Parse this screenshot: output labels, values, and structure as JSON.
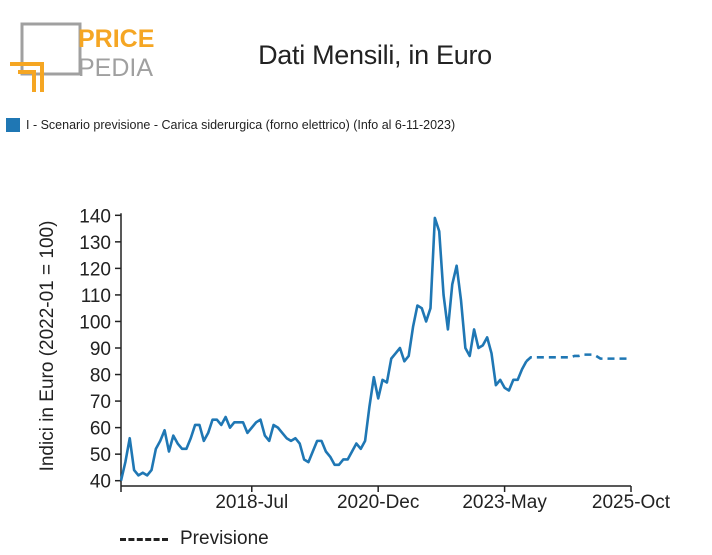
{
  "logo": {
    "line1": "PRICE",
    "line2": "PEDIA",
    "colors": {
      "orange": "#f5a623",
      "gray": "#a0a0a0"
    }
  },
  "colors": {
    "series": "#1f77b4",
    "axis": "#222222"
  },
  "chart_data": {
    "type": "line",
    "title": "Dati Mensili, in Euro",
    "ylabel": "Indici in Euro (2022-01 = 100)",
    "xlabel": "",
    "ylim": [
      38,
      142
    ],
    "yticks": [
      40,
      50,
      60,
      70,
      80,
      90,
      100,
      110,
      120,
      130,
      140
    ],
    "xlim": [
      "2016-01",
      "2025-10"
    ],
    "xticks": [
      {
        "x": "2016-01",
        "label": ""
      },
      {
        "x": "2018-07",
        "label": "2018-Jul"
      },
      {
        "x": "2020-12",
        "label": "2020-Dec"
      },
      {
        "x": "2023-05",
        "label": "2023-May"
      },
      {
        "x": "2025-10",
        "label": "2025-Oct"
      }
    ],
    "legend": "top-left",
    "grid": false,
    "series": [
      {
        "name": "I - Scenario previsione - Carica siderurgica (forno elettrico) (Info al 6-11-2023)",
        "color": "#1f77b4",
        "style": "solid",
        "x": [
          "2016-01",
          "2016-02",
          "2016-03",
          "2016-04",
          "2016-05",
          "2016-06",
          "2016-07",
          "2016-08",
          "2016-09",
          "2016-10",
          "2016-11",
          "2016-12",
          "2017-01",
          "2017-02",
          "2017-03",
          "2017-04",
          "2017-05",
          "2017-06",
          "2017-07",
          "2017-08",
          "2017-09",
          "2017-10",
          "2017-11",
          "2017-12",
          "2018-01",
          "2018-02",
          "2018-03",
          "2018-04",
          "2018-05",
          "2018-06",
          "2018-07",
          "2018-08",
          "2018-09",
          "2018-10",
          "2018-11",
          "2018-12",
          "2019-01",
          "2019-02",
          "2019-03",
          "2019-04",
          "2019-05",
          "2019-06",
          "2019-07",
          "2019-08",
          "2019-09",
          "2019-10",
          "2019-11",
          "2019-12",
          "2020-01",
          "2020-02",
          "2020-03",
          "2020-04",
          "2020-05",
          "2020-06",
          "2020-07",
          "2020-08",
          "2020-09",
          "2020-10",
          "2020-11",
          "2020-12",
          "2021-01",
          "2021-02",
          "2021-03",
          "2021-04",
          "2021-05",
          "2021-06",
          "2021-07",
          "2021-08",
          "2021-09",
          "2021-10",
          "2021-11",
          "2021-12",
          "2022-01",
          "2022-02",
          "2022-03",
          "2022-04",
          "2022-05",
          "2022-06",
          "2022-07",
          "2022-08",
          "2022-09",
          "2022-10",
          "2022-11",
          "2022-12",
          "2023-01",
          "2023-02",
          "2023-03",
          "2023-04",
          "2023-05",
          "2023-06",
          "2023-07",
          "2023-08",
          "2023-09",
          "2023-10"
        ],
        "values": [
          40,
          47,
          56,
          44,
          42,
          43,
          42,
          44,
          52,
          55,
          59,
          51,
          57,
          54,
          52,
          52,
          56,
          61,
          61,
          55,
          58,
          63,
          63,
          61,
          64,
          60,
          62,
          62,
          62,
          58,
          60,
          62,
          63,
          57,
          55,
          61,
          60,
          58,
          56,
          55,
          56,
          54,
          48,
          47,
          51,
          55,
          55,
          51,
          49,
          46,
          46,
          48,
          48,
          51,
          54,
          52,
          55,
          68,
          79,
          71,
          78,
          77,
          86,
          88,
          90,
          85,
          87,
          98,
          106,
          105,
          100,
          105,
          139,
          134,
          110,
          97,
          114,
          121,
          108,
          90,
          87,
          97,
          90,
          91,
          94,
          88,
          76,
          78,
          75,
          74,
          78,
          78,
          82,
          85
        ]
      },
      {
        "name": "Previsione",
        "color": "#1f77b4",
        "style": "dashed",
        "x": [
          "2023-10",
          "2023-11",
          "2023-12",
          "2024-01",
          "2024-02",
          "2024-03",
          "2024-04",
          "2024-05",
          "2024-06",
          "2024-07",
          "2024-08",
          "2024-09",
          "2024-10",
          "2024-11",
          "2024-12",
          "2025-01",
          "2025-02",
          "2025-03",
          "2025-04",
          "2025-05",
          "2025-06",
          "2025-07",
          "2025-08",
          "2025-09",
          "2025-10"
        ],
        "values": [
          85,
          86.5,
          86.5,
          86.5,
          86.5,
          86.5,
          86.5,
          86.5,
          86.5,
          86.5,
          86.5,
          87,
          87,
          87.5,
          87.5,
          87.5,
          87,
          86,
          86,
          86,
          86,
          86,
          86,
          86,
          86
        ]
      }
    ]
  },
  "legend_forecast": {
    "label": "Previsione"
  }
}
